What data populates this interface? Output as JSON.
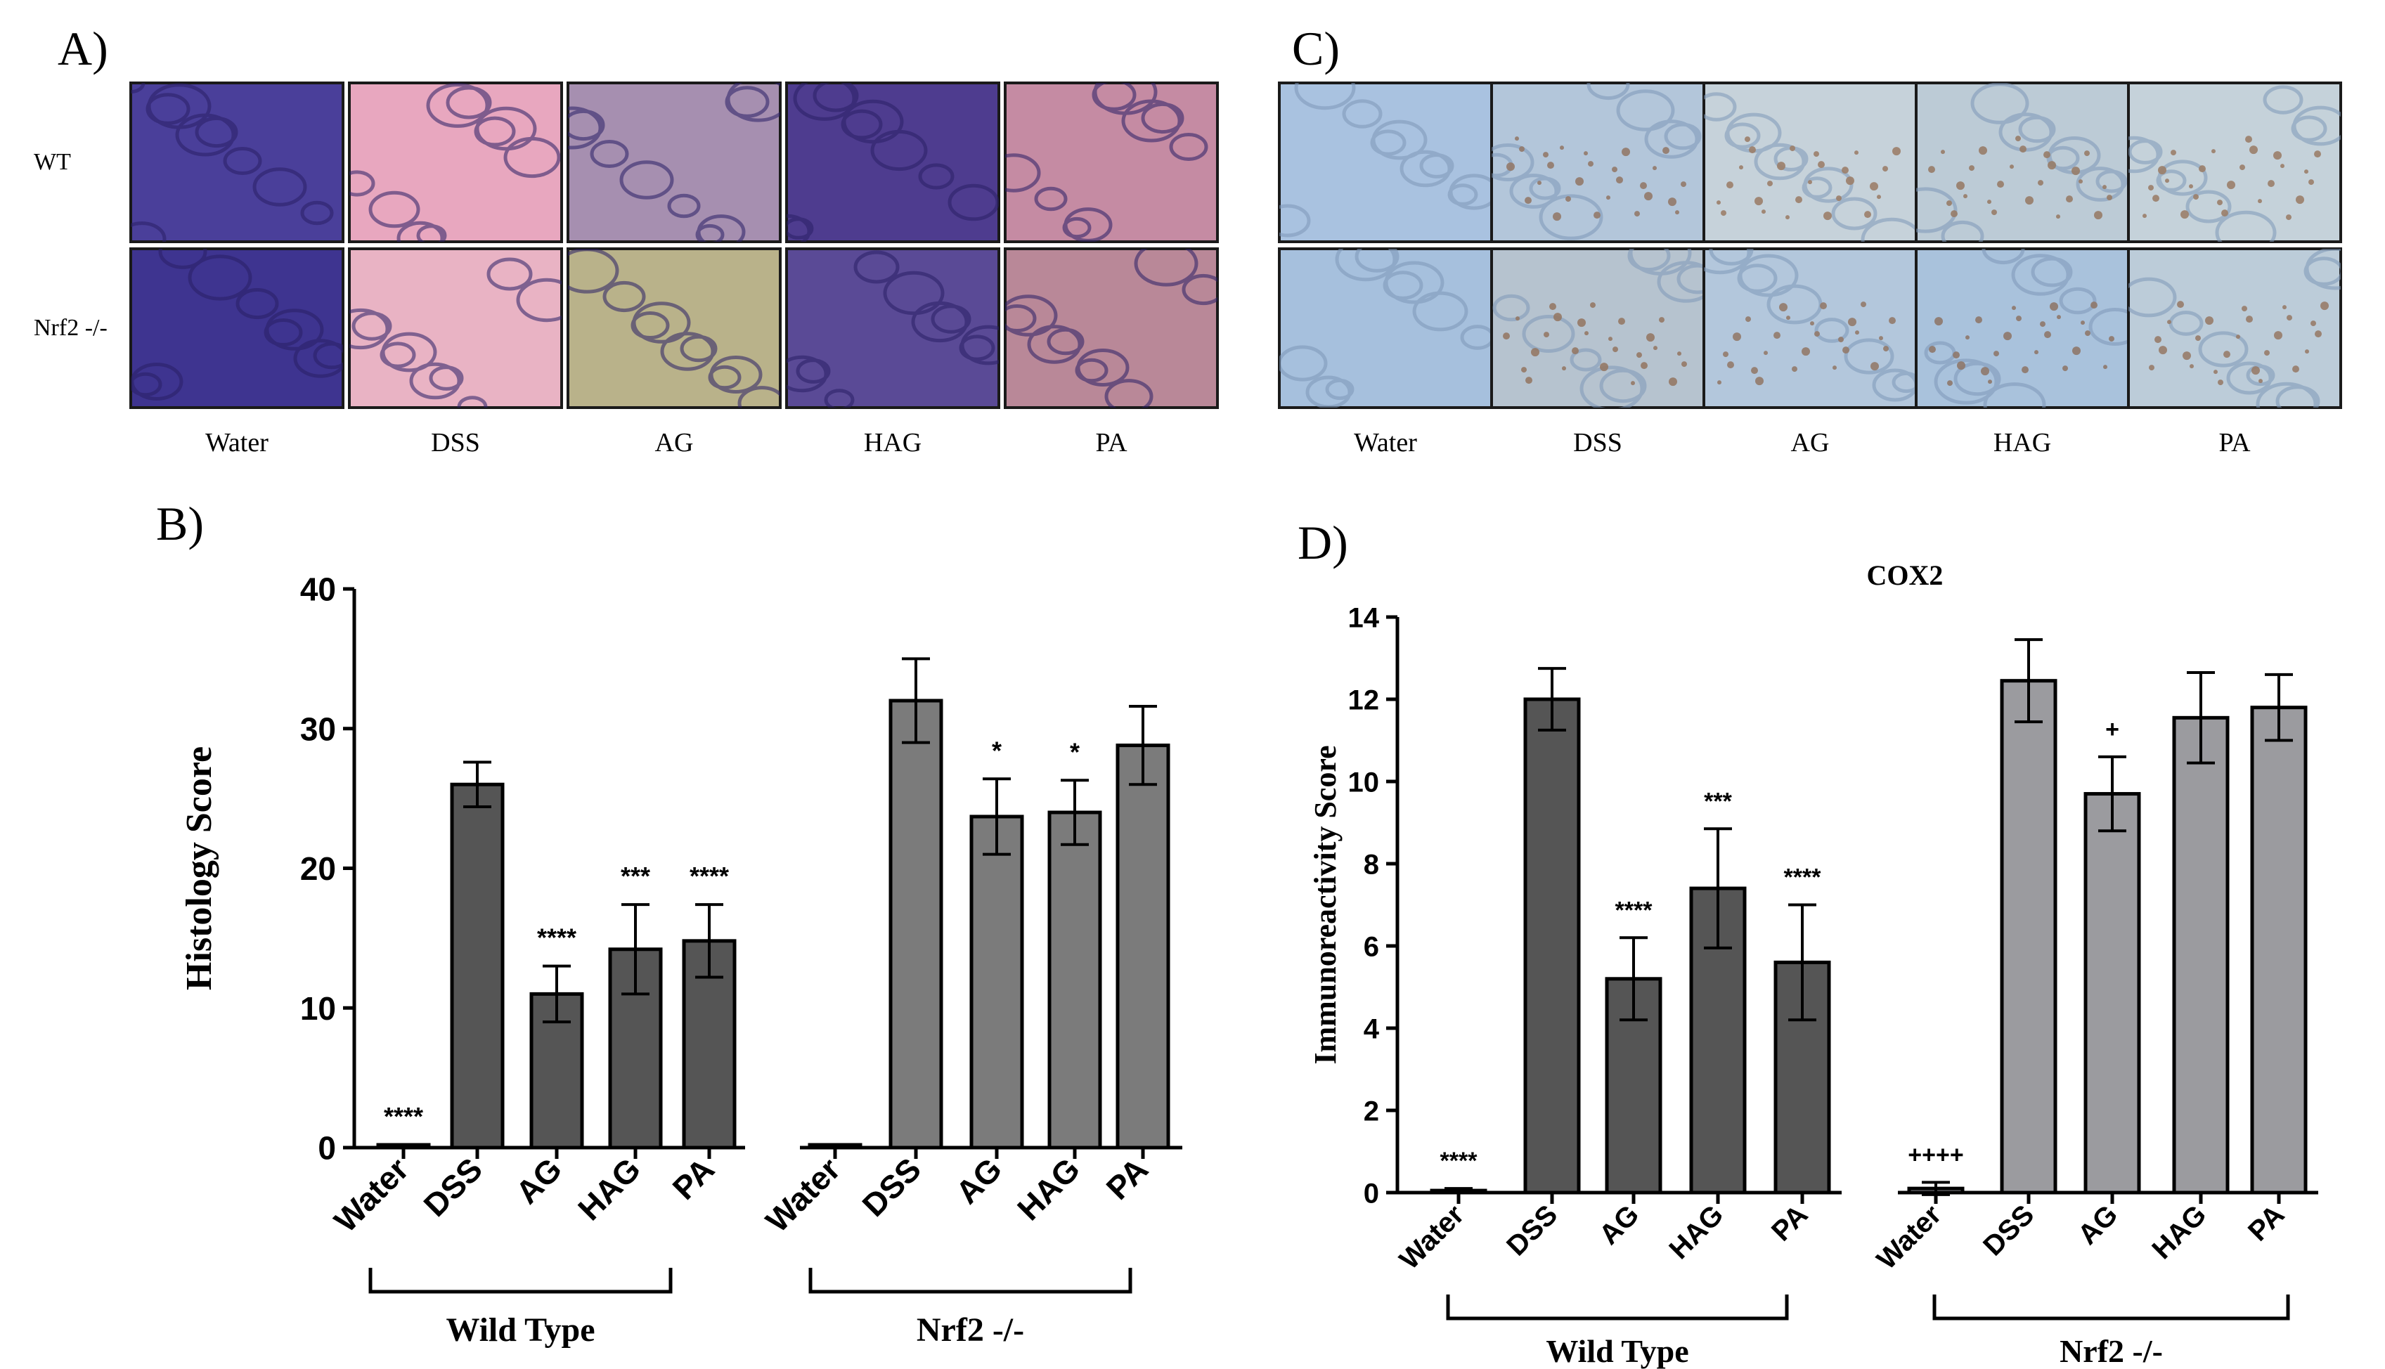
{
  "panelA": {
    "label": "A)",
    "rows": [
      "WT",
      "Nrf2 -/-"
    ],
    "columns": [
      "Water",
      "DSS",
      "AG",
      "HAG",
      "PA"
    ],
    "stain": "H&E",
    "colors": {
      "wt": [
        "#4a3f9a",
        "#e8a7bf",
        "#a68fb0",
        "#4e3c8f",
        "#c58ba3"
      ],
      "ko": [
        "#3e3490",
        "#e9b3c4",
        "#b9b28a",
        "#5a4a96",
        "#b98898"
      ]
    }
  },
  "panelC": {
    "label": "C)",
    "columns": [
      "Water",
      "DSS",
      "AG",
      "HAG",
      "PA"
    ],
    "stain": "IHC",
    "colors": {
      "wt": [
        "#a9c2e0",
        "#b3c6da",
        "#c6d2da",
        "#bccbd6",
        "#c5d2da"
      ],
      "ko": [
        "#a6c0dd",
        "#b6c3cf",
        "#b3c7dc",
        "#a9c2dc",
        "#bcccd9"
      ]
    }
  },
  "chart_data": [
    {
      "type": "bar",
      "panel": "B)",
      "title": "",
      "ylabel": "Histology Score",
      "ylim": [
        0,
        40
      ],
      "yticks": [
        "0",
        "10",
        "20",
        "30",
        "40"
      ],
      "groups": [
        {
          "name": "Wild Type",
          "color": "#555555",
          "categories": [
            "Water",
            "DSS",
            "AG",
            "HAG",
            "PA"
          ],
          "values": [
            0.2,
            26.0,
            11.0,
            14.2,
            14.8
          ],
          "errors": [
            0,
            1.6,
            2.0,
            3.2,
            2.6
          ],
          "sig": [
            "****",
            "",
            "****",
            "***",
            "****"
          ]
        },
        {
          "name": "Nrf2 -/-",
          "color": "#7b7b7b",
          "categories": [
            "Water",
            "DSS",
            "AG",
            "HAG",
            "PA"
          ],
          "values": [
            0.2,
            32.0,
            23.7,
            24.0,
            28.8
          ],
          "errors": [
            0,
            3.0,
            2.7,
            2.3,
            2.8
          ],
          "sig": [
            "",
            "",
            "*",
            "*",
            ""
          ]
        }
      ]
    },
    {
      "type": "bar",
      "panel": "D)",
      "title": "COX2",
      "ylabel": "Immunoreactivity Score",
      "ylim": [
        0,
        14
      ],
      "yticks": [
        "0",
        "2",
        "4",
        "6",
        "8",
        "10",
        "12",
        "14"
      ],
      "groups": [
        {
          "name": "Wild Type",
          "color": "#555555",
          "categories": [
            "Water",
            "DSS",
            "AG",
            "HAG",
            "PA"
          ],
          "values": [
            0.05,
            12.0,
            5.2,
            7.4,
            5.6
          ],
          "errors": [
            0.05,
            0.75,
            1.0,
            1.45,
            1.4
          ],
          "sig": [
            "****",
            "",
            "****",
            "***",
            "****"
          ]
        },
        {
          "name": "Nrf2 -/-",
          "color": "#9b9b9f",
          "categories": [
            "Water",
            "DSS",
            "AG",
            "HAG",
            "PA"
          ],
          "values": [
            0.1,
            12.45,
            9.7,
            11.55,
            11.8
          ],
          "errors": [
            0.15,
            1.0,
            0.9,
            1.1,
            0.8
          ],
          "sig": [
            "++++",
            "",
            "+",
            "",
            ""
          ]
        }
      ]
    }
  ]
}
